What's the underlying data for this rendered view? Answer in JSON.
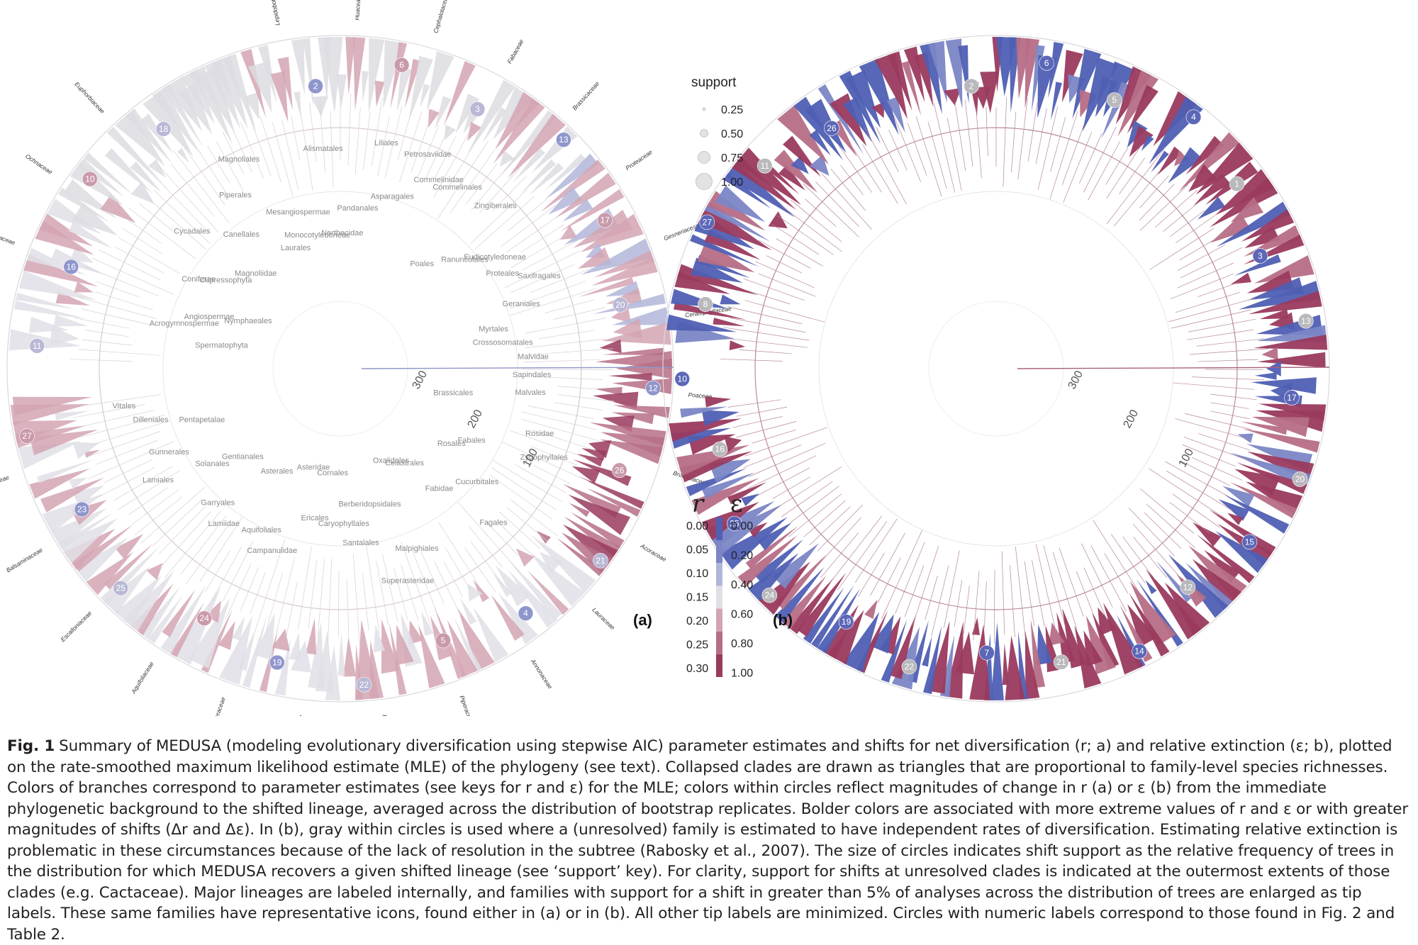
{
  "support_legend": {
    "title": "support",
    "values": [
      "0.25",
      "0.50",
      "0.75",
      "1.00"
    ]
  },
  "color_legend": {
    "r_title": "r",
    "eps_title": "ε",
    "r_values": [
      "0.00",
      "0.05",
      "0.10",
      "0.15",
      "0.20",
      "0.25",
      "0.30"
    ],
    "eps_values": [
      "0.00",
      "0.20",
      "0.40",
      "0.60",
      "0.80",
      "1.00"
    ],
    "colors": [
      "#4f5fb3",
      "#7b86c6",
      "#b1b6d9",
      "#e0dfe6",
      "#d3a5b3",
      "#b66e86",
      "#9a3a5e"
    ]
  },
  "panels": [
    {
      "label": "(a)",
      "axis_ticks": [
        "300",
        "200",
        "100"
      ],
      "internal_labels": [
        "Spermatophyta",
        "Acrogymnospermae",
        "Angiospermae",
        "Nymphaeales",
        "Coniferae",
        "Cupressophyta",
        "Cycadales",
        "Magnoliidae",
        "Canellales",
        "Piperales",
        "Magnoliales",
        "Laurales",
        "Mesangiospermae",
        "Monocotyledoneae",
        "Alismatales",
        "Narthecidae",
        "Pandanales",
        "Liliales",
        "Asparagales",
        "Petrosaviidae",
        "Commelinidae",
        "Commelinales",
        "Poales",
        "Zingiberales",
        "Ranunculales",
        "Eudicotyledoneae",
        "Proteales",
        "Saxifragales",
        "Geraniales",
        "Myrtales",
        "Crossosomatales",
        "Malvidae",
        "Sapindales",
        "Malvales",
        "Brassicales",
        "Rosidae",
        "Zygophyllales",
        "Fabales",
        "Rosales",
        "Cucurbitales",
        "Fagales",
        "Fabidae",
        "Celastrales",
        "Oxalidales",
        "Malpighiales",
        "Superasteridae",
        "Berberidopsidales",
        "Santalales",
        "Caryophyllales",
        "Cornales",
        "Ericales",
        "Asteridae",
        "Campanulidae",
        "Aquifoliales",
        "Asterales",
        "Lamiidae",
        "Garryales",
        "Gentianales",
        "Solanales",
        "Lamiales",
        "Gunnerales",
        "Pentapetalae",
        "Dilleniales",
        "Vitales"
      ],
      "tip_labels": [
        "Lepidobotryaceae",
        "Huaceae",
        "Cephalotaceae",
        "Fabaceae",
        "Brassicaceae",
        "Proteaceae",
        "Gesneriaceae",
        "Ceratophyllaceae",
        "Poaceae",
        "Bromeliaceae",
        "Acoraceae",
        "Lauraceae",
        "Annonaceae",
        "Piperaceae",
        "Podostemaceae",
        "Orchidaceae",
        "Asteraceae",
        "Aquifoliaceae",
        "Escalloniaceae",
        "Balsaminaceae",
        "Cornaceae",
        "Cactaceae",
        "Santalaceae",
        "Chrysobalanaceae",
        "Ochnaceae",
        "Euphorbiaceae"
      ],
      "node_numbers": [
        "2",
        "6",
        "3",
        "13",
        "17",
        "20",
        "12",
        "26",
        "21",
        "4",
        "5",
        "22",
        "19",
        "24",
        "25",
        "23",
        "27",
        "11",
        "16",
        "10",
        "18"
      ]
    },
    {
      "label": "(b)",
      "axis_ticks": [
        "300",
        "200",
        "100"
      ],
      "node_numbers": [
        "2",
        "6",
        "5",
        "4",
        "1",
        "3",
        "13",
        "17",
        "20",
        "15",
        "12",
        "14",
        "21",
        "7",
        "22",
        "19",
        "24",
        "25",
        "16",
        "10",
        "8",
        "27",
        "11",
        "26"
      ]
    }
  ],
  "caption": {
    "label": "Fig. 1",
    "text": "Summary of MEDUSA (modeling evolutionary diversification using stepwise AIC) parameter estimates and shifts for net diversification (r; a) and relative extinction (ε; b), plotted on the rate-smoothed maximum likelihood estimate (MLE) of the phylogeny (see text). Collapsed clades are drawn as triangles that are proportional to family-level species richnesses. Colors of branches correspond to parameter estimates (see keys for r and ε) for the MLE; colors within circles reflect magnitudes of change in r (a) or ε (b) from the immediate phylogenetic background to the shifted lineage, averaged across the distribution of bootstrap replicates. Bolder colors are associated with more extreme values of r and ε or with greater magnitudes of shifts (Δr and Δε). In (b), gray within circles is used where a (unresolved) family is estimated to have independent rates of diversification. Estimating relative extinction is problematic in these circumstances because of the lack of resolution in the subtree (Rabosky et al., 2007). The size of circles indicates shift support as the relative frequency of trees in the distribution for which MEDUSA recovers a given shifted lineage (see ‘support’ key). For clarity, support for shifts at unresolved clades is indicated at the outermost extents of those clades (e.g. Cactaceae). Major lineages are labeled internally, and families with support for a shift in greater than 5% of analyses across the distribution of trees are enlarged as tip labels. These same families have representative icons, found either in (a) or in (b). All other tip labels are minimized. Circles with numeric labels correspond to those found in Fig. 2 and Table 2."
  }
}
